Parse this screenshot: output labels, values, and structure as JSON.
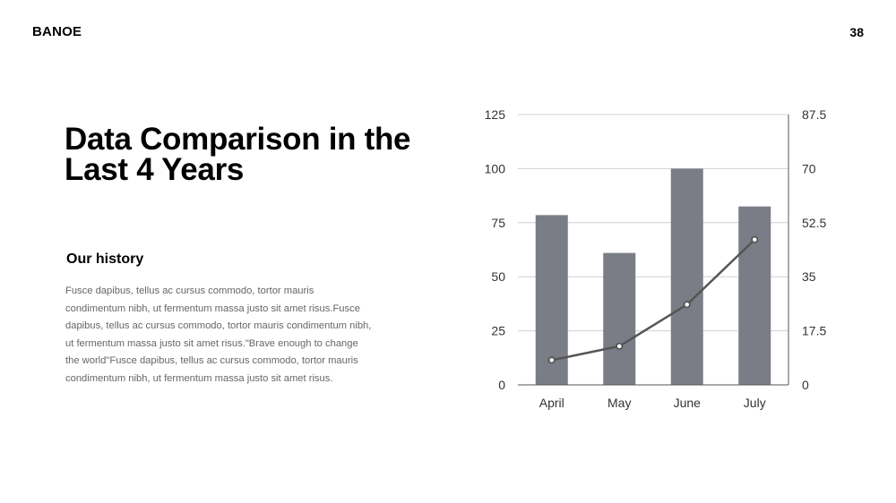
{
  "header": {
    "brand": "BANOE",
    "page_number": "38"
  },
  "main": {
    "title": "Data Comparison in the Last 4 Years",
    "subtitle": "Our history",
    "body": "Fusce dapibus, tellus ac cursus commodo, tortor mauris condimentum nibh, ut fermentum massa justo sit amet risus.Fusce dapibus, tellus ac cursus commodo, tortor mauris condimentum nibh, ut fermentum massa justo sit amet risus.\"Brave enough to change the world\"Fusce dapibus, tellus ac cursus commodo, tortor mauris condimentum nibh, ut fermentum massa justo sit amet risus."
  },
  "chart_data": {
    "type": "bar",
    "categories": [
      "April",
      "May",
      "June",
      "July"
    ],
    "series": [
      {
        "type": "bar",
        "axis": "left",
        "values": [
          78.5,
          61,
          100,
          82.5
        ],
        "color": "#7a7d85"
      },
      {
        "type": "line",
        "axis": "right",
        "values": [
          8,
          12.5,
          26,
          47
        ],
        "color": "#555555"
      }
    ],
    "y_left": {
      "min": 0,
      "max": 125,
      "ticks": [
        "0",
        "25",
        "50",
        "75",
        "100",
        "125"
      ]
    },
    "y_right": {
      "min": 0,
      "max": 87.5,
      "ticks": [
        "0",
        "17.5",
        "35",
        "52.5",
        "70",
        "87.5"
      ]
    },
    "grid": true,
    "legend": "none"
  }
}
